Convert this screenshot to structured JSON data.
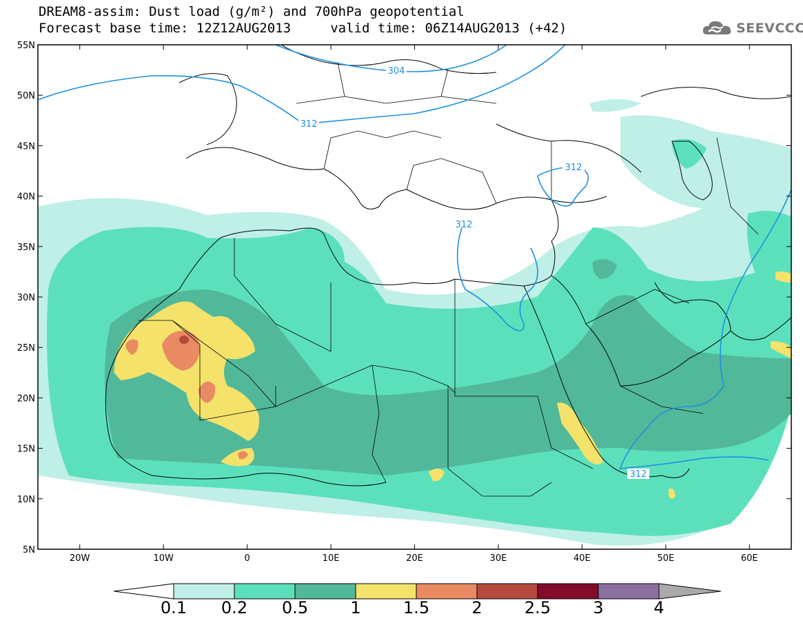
{
  "title": {
    "line1": "DREAM8-assim: Dust load (g/m²) and 700hPa geopotential",
    "line2": "Forecast base time: 12Z12AUG2013     valid time: 06Z14AUG2013 (+42)"
  },
  "logo": {
    "text": "SEEVCCC",
    "icon": "cloud-icon"
  },
  "map": {
    "lon_range": [
      -25,
      65
    ],
    "lat_range": [
      5,
      55
    ],
    "lat_ticks": [
      "55N",
      "50N",
      "45N",
      "40N",
      "35N",
      "30N",
      "25N",
      "20N",
      "15N",
      "10N",
      "5N"
    ],
    "lon_ticks": [
      "20W",
      "10W",
      "0",
      "10E",
      "20E",
      "30E",
      "40E",
      "50E",
      "60E"
    ],
    "contour_labels": [
      "304",
      "312",
      "312",
      "312",
      "312"
    ]
  },
  "colorbar": {
    "labels": [
      "0.1",
      "0.2",
      "0.5",
      "1",
      "1.5",
      "2",
      "2.5",
      "3",
      "4"
    ],
    "colors": [
      "#bfefe6",
      "#5ce0bc",
      "#52b89a",
      "#f5e26a",
      "#e98a63",
      "#b54a3c",
      "#820c2a",
      "#8b6fa0",
      "#aaaaaa"
    ]
  },
  "colors": {
    "level_01": "#bfefe6",
    "level_02": "#5ce0bc",
    "level_05": "#52b89a",
    "level_10": "#f5e26a",
    "level_15": "#e98a63",
    "level_20": "#b54a3c",
    "contour": "#1e90e0"
  }
}
